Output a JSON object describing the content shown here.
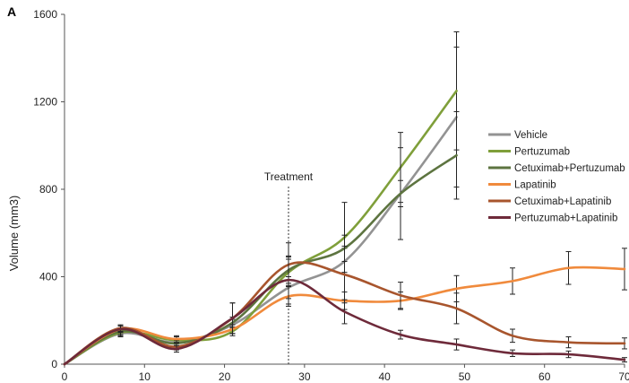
{
  "panel_label": "A",
  "chart_data": {
    "type": "line",
    "title": "",
    "xlabel": "",
    "ylabel": "Volume (mm3)",
    "xlim": [
      0,
      70
    ],
    "ylim": [
      0,
      1600
    ],
    "x_ticks": [
      0,
      10,
      20,
      30,
      40,
      50,
      60,
      70
    ],
    "y_ticks": [
      0,
      400,
      800,
      1200,
      1600
    ],
    "grid": false,
    "legend_position": "right",
    "annotations": [
      {
        "text": "Treatment",
        "x": 28,
        "style": "dotted-vertical-line"
      }
    ],
    "series": [
      {
        "name": "Vehicle",
        "color": "#939393",
        "x": [
          0,
          7,
          14,
          21,
          28,
          35,
          42,
          49
        ],
        "y": [
          0,
          140,
          100,
          180,
          350,
          470,
          780,
          1130
        ],
        "err": [
          0,
          15,
          15,
          25,
          50,
          60,
          60,
          320
        ]
      },
      {
        "name": "Pertuzumab",
        "color": "#7f9f3a",
        "x": [
          0,
          7,
          14,
          21,
          28,
          35,
          42,
          49
        ],
        "y": [
          0,
          145,
          110,
          150,
          420,
          580,
          900,
          1250
        ],
        "err": [
          0,
          15,
          15,
          20,
          60,
          160,
          160,
          270
        ]
      },
      {
        "name": "Cetuximab+Pertuzumab",
        "color": "#5d7440",
        "x": [
          0,
          7,
          14,
          21,
          28,
          35,
          42,
          49
        ],
        "y": [
          0,
          150,
          95,
          190,
          430,
          530,
          780,
          955
        ],
        "err": [
          0,
          15,
          15,
          25,
          60,
          60,
          210,
          200
        ]
      },
      {
        "name": "Lapatinib",
        "color": "#f08a3c",
        "x": [
          0,
          7,
          14,
          21,
          28,
          35,
          42,
          49,
          56,
          63,
          70
        ],
        "y": [
          0,
          160,
          115,
          160,
          310,
          290,
          290,
          345,
          380,
          440,
          435
        ],
        "err": [
          0,
          15,
          15,
          20,
          45,
          40,
          40,
          60,
          60,
          75,
          95
        ]
      },
      {
        "name": "Cetuximab+Lapatinib",
        "color": "#a8552d",
        "x": [
          0,
          7,
          14,
          21,
          28,
          35,
          42,
          49,
          56,
          63,
          70
        ],
        "y": [
          0,
          165,
          80,
          210,
          455,
          410,
          315,
          255,
          130,
          100,
          95
        ],
        "err": [
          0,
          15,
          15,
          70,
          100,
          130,
          60,
          70,
          30,
          25,
          25
        ]
      },
      {
        "name": "Pertuzumab+Lapatinib",
        "color": "#6e2a3a",
        "x": [
          0,
          7,
          14,
          21,
          28,
          35,
          42,
          49,
          56,
          63,
          70
        ],
        "y": [
          0,
          160,
          70,
          210,
          385,
          240,
          135,
          90,
          50,
          45,
          20
        ],
        "err": [
          0,
          15,
          15,
          70,
          110,
          55,
          20,
          25,
          15,
          15,
          10
        ]
      }
    ]
  }
}
